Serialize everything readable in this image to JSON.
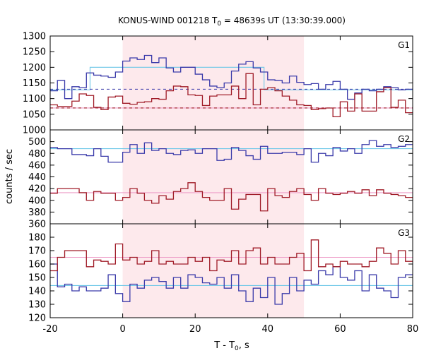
{
  "chart_data": {
    "type": "line",
    "title_main": "KONUS-WIND 001218 T",
    "title_sub": "0",
    "title_rest": " = 48639s UT (13:30:39.000)",
    "xlabel_main": "T - T",
    "xlabel_sub": "0",
    "xlabel_rest": ", s",
    "ylabel": "counts / sec",
    "xlim": [
      -20,
      80
    ],
    "xticks": [
      -20,
      0,
      20,
      40,
      60,
      80
    ],
    "shaded_interval": [
      0,
      50
    ],
    "grid": false,
    "colors": {
      "blue": "#3b3baa",
      "red": "#a01c28",
      "cyan": "#6fc8e8",
      "pink": "#ee9ec8",
      "shade": "#fde9ec"
    },
    "panels": [
      {
        "name": "G1",
        "ylim": [
          1000,
          1300
        ],
        "yticks": [
          1000,
          1050,
          1100,
          1150,
          1200,
          1250,
          1300
        ],
        "x_edges": [
          -20,
          -18,
          -16,
          -14,
          -12,
          -10,
          -8,
          -6,
          -4,
          -2,
          0,
          2,
          4,
          6,
          8,
          10,
          12,
          14,
          16,
          18,
          20,
          22,
          24,
          26,
          28,
          30,
          32,
          34,
          36,
          38,
          40,
          42,
          44,
          46,
          48,
          50,
          52,
          54,
          56,
          58,
          60,
          62,
          64,
          66,
          68,
          70,
          72,
          74,
          76,
          78,
          80
        ],
        "series": [
          {
            "color": "blue",
            "values": [
              1125,
              1158,
              1100,
              1138,
              1135,
              1182,
              1175,
              1172,
              1168,
              1185,
              1220,
              1230,
              1225,
              1238,
              1215,
              1230,
              1198,
              1185,
              1200,
              1200,
              1178,
              1160,
              1140,
              1135,
              1150,
              1188,
              1210,
              1218,
              1198,
              1185,
              1160,
              1158,
              1150,
              1172,
              1152,
              1145,
              1148,
              1130,
              1145,
              1155,
              1130,
              1098,
              1118,
              1130,
              1125,
              1130,
              1138,
              1135,
              1128,
              1130
            ]
          },
          {
            "color": "red",
            "values": [
              1080,
              1075,
              1075,
              1092,
              1115,
              1110,
              1072,
              1065,
              1105,
              1108,
              1085,
              1082,
              1088,
              1090,
              1100,
              1098,
              1125,
              1140,
              1138,
              1112,
              1110,
              1078,
              1108,
              1112,
              1112,
              1140,
              1100,
              1180,
              1080,
              1130,
              1135,
              1125,
              1108,
              1095,
              1080,
              1078,
              1065,
              1068,
              1070,
              1042,
              1090,
              1060,
              1115,
              1060,
              1060,
              1122,
              1135,
              1072,
              1095,
              1055
            ]
          }
        ],
        "fits": [
          {
            "color": "cyan",
            "dashed": false,
            "points": [
              [
                -20,
                1128
              ],
              [
                -9,
                1128
              ],
              [
                -9,
                1200
              ],
              [
                39,
                1200
              ],
              [
                39,
                1128
              ],
              [
                80,
                1128
              ]
            ]
          },
          {
            "color": "blue",
            "dashed": true,
            "points": [
              [
                -20,
                1130
              ],
              [
                80,
                1130
              ]
            ]
          },
          {
            "color": "pink",
            "dashed": false,
            "points": [
              [
                -20,
                1070
              ],
              [
                80,
                1070
              ]
            ]
          },
          {
            "color": "red",
            "dashed": true,
            "points": [
              [
                -20,
                1070
              ],
              [
                80,
                1070
              ]
            ]
          }
        ]
      },
      {
        "name": "G2",
        "ylim": [
          360,
          520
        ],
        "yticks": [
          360,
          380,
          400,
          420,
          440,
          460,
          480,
          500
        ],
        "x_edges": [
          -20,
          -18,
          -16,
          -14,
          -12,
          -10,
          -8,
          -6,
          -4,
          -2,
          0,
          2,
          4,
          6,
          8,
          10,
          12,
          14,
          16,
          18,
          20,
          22,
          24,
          26,
          28,
          30,
          32,
          34,
          36,
          38,
          40,
          42,
          44,
          46,
          48,
          50,
          52,
          54,
          56,
          58,
          60,
          62,
          64,
          66,
          68,
          70,
          72,
          74,
          76,
          78,
          80
        ],
        "series": [
          {
            "color": "blue",
            "values": [
              490,
              488,
              488,
              478,
              478,
              476,
              488,
              475,
              465,
              465,
              482,
              495,
              480,
              498,
              485,
              488,
              480,
              478,
              485,
              486,
              480,
              488,
              488,
              468,
              470,
              490,
              485,
              476,
              470,
              492,
              480,
              480,
              482,
              482,
              478,
              488,
              465,
              480,
              476,
              490,
              484,
              488,
              480,
              495,
              502,
              492,
              495,
              490,
              492,
              495
            ]
          },
          {
            "color": "red",
            "values": [
              412,
              420,
              420,
              420,
              413,
              400,
              415,
              412,
              412,
              400,
              405,
              420,
              412,
              400,
              395,
              408,
              402,
              415,
              420,
              430,
              415,
              405,
              400,
              400,
              420,
              385,
              402,
              410,
              410,
              382,
              420,
              408,
              405,
              415,
              420,
              410,
              400,
              420,
              412,
              410,
              412,
              415,
              412,
              418,
              408,
              418,
              412,
              410,
              408,
              405
            ]
          }
        ],
        "fits": [
          {
            "color": "cyan",
            "dashed": false,
            "points": [
              [
                -20,
                488
              ],
              [
                80,
                488
              ]
            ]
          },
          {
            "color": "pink",
            "dashed": false,
            "points": [
              [
                -20,
                413
              ],
              [
                80,
                413
              ]
            ]
          }
        ]
      },
      {
        "name": "G3",
        "ylim": [
          120,
          190
        ],
        "yticks": [
          120,
          130,
          140,
          150,
          160,
          170,
          180
        ],
        "x_edges": [
          -20,
          -18,
          -16,
          -14,
          -12,
          -10,
          -8,
          -6,
          -4,
          -2,
          0,
          2,
          4,
          6,
          8,
          10,
          12,
          14,
          16,
          18,
          20,
          22,
          24,
          26,
          28,
          30,
          32,
          34,
          36,
          38,
          40,
          42,
          44,
          46,
          48,
          50,
          52,
          54,
          56,
          58,
          60,
          62,
          64,
          66,
          68,
          70,
          72,
          74,
          76,
          78,
          80
        ],
        "series": [
          {
            "color": "blue",
            "values": [
              160,
              143,
              145,
              140,
              143,
              140,
              140,
              142,
              152,
              138,
              132,
              145,
              142,
              148,
              150,
              147,
              142,
              150,
              142,
              152,
              150,
              146,
              145,
              150,
              142,
              152,
              140,
              132,
              142,
              135,
              150,
              130,
              138,
              150,
              140,
              148,
              145,
              155,
              152,
              158,
              150,
              148,
              155,
              140,
              152,
              142,
              140,
              135,
              150,
              152
            ]
          },
          {
            "color": "red",
            "values": [
              155,
              165,
              170,
              170,
              170,
              158,
              163,
              162,
              160,
              175,
              163,
              165,
              160,
              162,
              170,
              160,
              162,
              160,
              160,
              165,
              162,
              165,
              155,
              163,
              162,
              170,
              160,
              170,
              172,
              160,
              165,
              160,
              160,
              165,
              168,
              155,
              178,
              158,
              160,
              158,
              162,
              160,
              160,
              158,
              162,
              172,
              168,
              160,
              170,
              162
            ]
          }
        ],
        "fits": [
          {
            "color": "cyan",
            "dashed": false,
            "points": [
              [
                -20,
                144
              ],
              [
                80,
                144
              ]
            ]
          },
          {
            "color": "pink",
            "dashed": false,
            "points": [
              [
                -20,
                165
              ],
              [
                80,
                165
              ]
            ]
          }
        ]
      }
    ]
  }
}
